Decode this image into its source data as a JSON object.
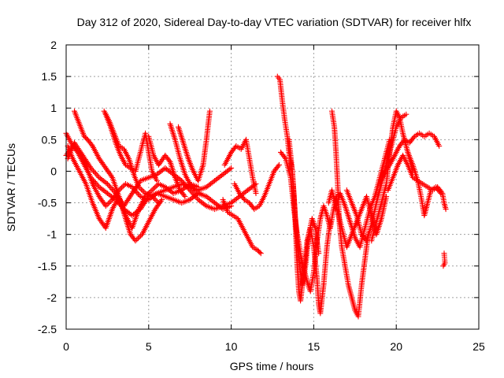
{
  "chart_data": {
    "type": "scatter",
    "title": "Day 312 of 2020, Sidereal Day-to-day VTEC variation (SDTVAR) for receiver hlfx",
    "xlabel": "GPS time / hours",
    "ylabel": "SDTVAR / TECUs",
    "xlim": [
      0,
      25
    ],
    "ylim": [
      -2.5,
      2
    ],
    "xticks": [
      0,
      5,
      10,
      15,
      20,
      25
    ],
    "yticks": [
      -2.5,
      -2,
      -1.5,
      -1,
      -0.5,
      0,
      0.5,
      1,
      1.5,
      2
    ],
    "xtick_labels": [
      "0",
      "5",
      "10",
      "15",
      "20",
      "25"
    ],
    "ytick_labels": [
      "-2.5",
      "-2",
      "-1.5",
      "-1",
      "-0.5",
      "0",
      "0.5",
      "1",
      "1.5",
      "2"
    ],
    "grid": true,
    "marker": "+",
    "color": "#ff0000",
    "tracks": [
      [
        [
          0.0,
          0.6
        ],
        [
          0.3,
          0.45
        ],
        [
          0.7,
          0.3
        ],
        [
          1.1,
          0.1
        ],
        [
          1.5,
          -0.1
        ],
        [
          2.0,
          -0.25
        ],
        [
          2.5,
          -0.35
        ],
        [
          3.0,
          -0.45
        ],
        [
          3.5,
          -0.6
        ],
        [
          4.0,
          -0.7
        ],
        [
          4.5,
          -0.6
        ],
        [
          5.0,
          -0.4
        ],
        [
          5.5,
          -0.35
        ],
        [
          6.0,
          -0.3
        ],
        [
          6.5,
          -0.25
        ],
        [
          7.0,
          -0.2
        ],
        [
          7.5,
          -0.25
        ],
        [
          8.0,
          -0.3
        ],
        [
          8.5,
          -0.25
        ],
        [
          9.0,
          -0.15
        ],
        [
          9.5,
          -0.05
        ],
        [
          10.0,
          0.05
        ]
      ],
      [
        [
          0.0,
          0.25
        ],
        [
          0.4,
          0.4
        ],
        [
          0.8,
          0.3
        ],
        [
          1.2,
          0.1
        ],
        [
          1.6,
          -0.2
        ],
        [
          2.0,
          -0.4
        ],
        [
          2.4,
          -0.55
        ],
        [
          2.8,
          -0.45
        ],
        [
          3.2,
          -0.3
        ],
        [
          3.6,
          -0.2
        ],
        [
          4.0,
          -0.25
        ],
        [
          4.5,
          -0.4
        ],
        [
          5.0,
          -0.45
        ],
        [
          5.5,
          -0.35
        ],
        [
          6.0,
          -0.4
        ],
        [
          6.5,
          -0.45
        ],
        [
          7.0,
          -0.5
        ],
        [
          7.5,
          -0.45
        ],
        [
          8.0,
          -0.35
        ],
        [
          8.5,
          -0.4
        ],
        [
          9.0,
          -0.5
        ],
        [
          9.5,
          -0.6
        ],
        [
          10.0,
          -0.55
        ]
      ],
      [
        [
          0.1,
          0.4
        ],
        [
          0.4,
          0.2
        ],
        [
          0.8,
          0.0
        ],
        [
          1.2,
          -0.2
        ],
        [
          1.6,
          -0.5
        ],
        [
          2.0,
          -0.75
        ],
        [
          2.4,
          -0.9
        ],
        [
          2.8,
          -0.6
        ],
        [
          3.2,
          -0.4
        ],
        [
          3.6,
          -0.7
        ],
        [
          4.0,
          -0.9
        ],
        [
          4.4,
          -0.6
        ],
        [
          4.8,
          -0.4
        ],
        [
          5.2,
          -0.3
        ],
        [
          5.6,
          -0.2
        ],
        [
          6.0,
          -0.25
        ],
        [
          6.5,
          -0.35
        ],
        [
          7.0,
          -0.3
        ],
        [
          7.5,
          -0.2
        ],
        [
          8.0,
          -0.25
        ]
      ],
      [
        [
          0.1,
          0.2
        ],
        [
          0.5,
          0.45
        ],
        [
          1.0,
          0.25
        ],
        [
          1.5,
          0.05
        ],
        [
          2.0,
          -0.1
        ],
        [
          2.5,
          -0.2
        ],
        [
          3.0,
          -0.35
        ],
        [
          3.5,
          -0.55
        ],
        [
          4.0,
          -0.35
        ],
        [
          4.5,
          -0.15
        ],
        [
          5.0,
          -0.1
        ],
        [
          5.5,
          -0.05
        ],
        [
          6.0,
          0.05
        ],
        [
          6.5,
          -0.05
        ],
        [
          7.0,
          -0.15
        ],
        [
          7.5,
          -0.3
        ],
        [
          8.0,
          -0.45
        ],
        [
          8.5,
          -0.55
        ],
        [
          9.0,
          -0.6
        ],
        [
          9.5,
          -0.55
        ],
        [
          10.0,
          -0.5
        ],
        [
          10.5,
          -0.4
        ],
        [
          11.0,
          -0.3
        ],
        [
          11.5,
          -0.2
        ]
      ],
      [
        [
          0.5,
          0.95
        ],
        [
          0.8,
          0.75
        ],
        [
          1.1,
          0.55
        ],
        [
          1.3,
          0.5
        ],
        [
          1.6,
          0.4
        ],
        [
          2.0,
          0.2
        ],
        [
          2.4,
          0.05
        ],
        [
          2.8,
          -0.1
        ],
        [
          3.2,
          -0.4
        ],
        [
          3.6,
          -0.75
        ],
        [
          3.9,
          -1.0
        ],
        [
          4.2,
          -1.1
        ],
        [
          4.6,
          -1.0
        ],
        [
          5.0,
          -0.8
        ],
        [
          5.4,
          -0.6
        ],
        [
          5.8,
          -0.45
        ]
      ],
      [
        [
          2.3,
          0.95
        ],
        [
          2.6,
          0.8
        ],
        [
          2.9,
          0.6
        ],
        [
          3.2,
          0.4
        ],
        [
          3.5,
          0.35
        ],
        [
          3.8,
          0.2
        ],
        [
          4.1,
          -0.05
        ],
        [
          4.4,
          -0.25
        ],
        [
          4.8,
          -0.35
        ],
        [
          5.2,
          -0.4
        ],
        [
          5.6,
          -0.5
        ]
      ],
      [
        [
          2.4,
          0.9
        ],
        [
          2.7,
          0.7
        ],
        [
          3.0,
          0.45
        ],
        [
          3.3,
          0.25
        ],
        [
          3.6,
          0.1
        ],
        [
          3.9,
          0.05
        ],
        [
          4.2,
          0.0
        ],
        [
          4.5,
          0.3
        ],
        [
          4.8,
          0.6
        ],
        [
          5.0,
          0.3
        ],
        [
          5.2,
          0.0
        ],
        [
          5.5,
          -0.15
        ]
      ],
      [
        [
          5.0,
          0.55
        ],
        [
          5.3,
          0.25
        ],
        [
          5.6,
          0.1
        ],
        [
          6.0,
          0.25
        ],
        [
          6.3,
          0.15
        ],
        [
          6.6,
          -0.1
        ],
        [
          6.9,
          -0.3
        ],
        [
          7.2,
          -0.4
        ]
      ],
      [
        [
          6.3,
          0.75
        ],
        [
          6.6,
          0.5
        ],
        [
          6.9,
          0.2
        ],
        [
          7.2,
          -0.05
        ],
        [
          7.5,
          -0.2
        ],
        [
          7.8,
          -0.3
        ],
        [
          8.1,
          -0.35
        ]
      ],
      [
        [
          6.8,
          0.7
        ],
        [
          7.1,
          0.45
        ],
        [
          7.4,
          0.2
        ],
        [
          7.7,
          0.0
        ],
        [
          8.0,
          -0.15
        ],
        [
          8.3,
          0.1
        ],
        [
          8.5,
          0.5
        ],
        [
          8.7,
          0.95
        ]
      ],
      [
        [
          9.6,
          0.1
        ],
        [
          10.0,
          0.3
        ],
        [
          10.3,
          0.4
        ],
        [
          10.6,
          0.35
        ],
        [
          10.9,
          0.5
        ],
        [
          11.1,
          0.2
        ],
        [
          11.3,
          -0.1
        ],
        [
          11.5,
          -0.35
        ]
      ],
      [
        [
          9.5,
          -0.45
        ],
        [
          9.8,
          -0.65
        ],
        [
          10.1,
          -0.7
        ],
        [
          10.4,
          -0.75
        ],
        [
          10.7,
          -0.9
        ],
        [
          11.0,
          -1.05
        ],
        [
          11.3,
          -1.2
        ],
        [
          11.6,
          -1.25
        ],
        [
          11.8,
          -1.3
        ]
      ],
      [
        [
          10.2,
          -0.2
        ],
        [
          10.5,
          -0.35
        ],
        [
          10.8,
          -0.45
        ],
        [
          11.1,
          -0.5
        ],
        [
          11.4,
          -0.6
        ],
        [
          11.7,
          -0.55
        ],
        [
          12.0,
          -0.4
        ],
        [
          12.3,
          -0.2
        ],
        [
          12.6,
          0.0
        ],
        [
          12.9,
          0.1
        ]
      ],
      [
        [
          12.8,
          1.5
        ],
        [
          12.95,
          1.45
        ],
        [
          13.1,
          1.1
        ],
        [
          13.25,
          0.8
        ],
        [
          13.4,
          0.55
        ],
        [
          13.5,
          0.3
        ],
        [
          13.6,
          0.15
        ],
        [
          13.7,
          0.0
        ],
        [
          13.8,
          -0.4
        ],
        [
          13.9,
          -0.9
        ],
        [
          14.0,
          -1.5
        ],
        [
          14.1,
          -1.9
        ],
        [
          14.2,
          -2.05
        ],
        [
          14.4,
          -1.6
        ],
        [
          14.6,
          -1.1
        ],
        [
          14.8,
          -0.9
        ],
        [
          15.0,
          -1.2
        ],
        [
          15.2,
          -1.7
        ],
        [
          15.3,
          -2.1
        ],
        [
          15.4,
          -2.25
        ],
        [
          15.6,
          -1.8
        ],
        [
          15.8,
          -1.2
        ],
        [
          16.0,
          -0.8
        ]
      ],
      [
        [
          13.0,
          0.3
        ],
        [
          13.3,
          0.2
        ],
        [
          13.6,
          -0.1
        ],
        [
          13.8,
          -0.6
        ],
        [
          14.0,
          -1.0
        ],
        [
          14.2,
          -1.3
        ],
        [
          14.4,
          -1.55
        ],
        [
          14.6,
          -1.75
        ],
        [
          14.8,
          -1.9
        ],
        [
          15.0,
          -1.6
        ],
        [
          15.2,
          -1.1
        ],
        [
          15.4,
          -0.75
        ],
        [
          15.6,
          -0.55
        ],
        [
          15.8,
          -0.7
        ],
        [
          16.0,
          -0.9
        ],
        [
          16.2,
          -0.6
        ],
        [
          16.4,
          -0.4
        ]
      ],
      [
        [
          13.5,
          0.5
        ],
        [
          13.7,
          0.0
        ],
        [
          13.9,
          -0.8
        ],
        [
          14.1,
          -1.4
        ],
        [
          14.3,
          -1.8
        ],
        [
          14.5,
          -1.5
        ],
        [
          14.7,
          -1.0
        ],
        [
          14.9,
          -0.75
        ],
        [
          15.1,
          -0.9
        ],
        [
          15.3,
          -1.3
        ]
      ],
      [
        [
          16.1,
          0.95
        ],
        [
          16.25,
          0.7
        ],
        [
          16.35,
          0.3
        ],
        [
          16.45,
          -0.2
        ],
        [
          16.55,
          -0.8
        ],
        [
          16.7,
          -1.2
        ],
        [
          16.9,
          -1.5
        ],
        [
          17.1,
          -1.8
        ],
        [
          17.3,
          -2.0
        ],
        [
          17.5,
          -2.2
        ],
        [
          17.7,
          -2.3
        ],
        [
          17.9,
          -1.8
        ],
        [
          18.1,
          -1.4
        ],
        [
          18.3,
          -1.0
        ]
      ],
      [
        [
          15.9,
          -0.5
        ],
        [
          16.1,
          -0.3
        ],
        [
          16.4,
          -0.6
        ],
        [
          16.7,
          -0.9
        ],
        [
          17.0,
          -1.2
        ],
        [
          17.3,
          -1.0
        ],
        [
          17.6,
          -0.8
        ],
        [
          17.9,
          -0.6
        ],
        [
          18.2,
          -0.4
        ],
        [
          18.5,
          -0.7
        ],
        [
          18.8,
          -1.0
        ],
        [
          19.1,
          -0.75
        ],
        [
          19.4,
          -0.4
        ]
      ],
      [
        [
          16.3,
          -0.6
        ],
        [
          16.6,
          -0.35
        ],
        [
          16.9,
          -0.55
        ],
        [
          17.2,
          -0.8
        ],
        [
          17.5,
          -1.05
        ],
        [
          17.8,
          -1.2
        ],
        [
          18.1,
          -0.9
        ],
        [
          18.4,
          -0.6
        ],
        [
          18.7,
          -0.4
        ],
        [
          19.0,
          -0.1
        ],
        [
          19.3,
          0.2
        ],
        [
          19.6,
          0.5
        ]
      ],
      [
        [
          17.0,
          -0.3
        ],
        [
          17.3,
          -0.5
        ],
        [
          17.6,
          -0.7
        ],
        [
          17.9,
          -1.0
        ],
        [
          18.2,
          -1.1
        ],
        [
          18.5,
          -0.85
        ],
        [
          18.8,
          -0.5
        ],
        [
          19.1,
          -0.2
        ],
        [
          19.4,
          0.1
        ],
        [
          19.7,
          0.4
        ],
        [
          20.0,
          0.7
        ],
        [
          20.3,
          0.85
        ],
        [
          20.6,
          0.9
        ]
      ],
      [
        [
          18.5,
          -1.1
        ],
        [
          18.8,
          -0.8
        ],
        [
          19.1,
          -0.5
        ],
        [
          19.4,
          -0.2
        ],
        [
          19.6,
          0.3
        ],
        [
          19.8,
          0.7
        ],
        [
          20.0,
          0.95
        ],
        [
          20.2,
          0.85
        ],
        [
          20.4,
          0.6
        ],
        [
          20.6,
          0.4
        ],
        [
          20.8,
          0.2
        ],
        [
          21.0,
          0.0
        ]
      ],
      [
        [
          19.0,
          -0.2
        ],
        [
          19.3,
          0.0
        ],
        [
          19.6,
          0.1
        ],
        [
          19.9,
          0.25
        ],
        [
          20.2,
          0.4
        ],
        [
          20.5,
          0.5
        ],
        [
          20.8,
          0.45
        ],
        [
          21.1,
          0.55
        ],
        [
          21.4,
          0.6
        ],
        [
          21.7,
          0.55
        ],
        [
          22.0,
          0.6
        ],
        [
          22.3,
          0.55
        ],
        [
          22.6,
          0.4
        ]
      ],
      [
        [
          19.5,
          -0.3
        ],
        [
          19.8,
          -0.1
        ],
        [
          20.1,
          0.1
        ],
        [
          20.4,
          0.25
        ],
        [
          20.7,
          0.1
        ],
        [
          21.0,
          -0.1
        ],
        [
          21.3,
          -0.15
        ],
        [
          21.6,
          -0.2
        ],
        [
          21.9,
          -0.25
        ],
        [
          22.2,
          -0.3
        ],
        [
          22.5,
          -0.25
        ],
        [
          22.8,
          -0.35
        ],
        [
          22.9,
          -0.5
        ],
        [
          23.0,
          -0.6
        ]
      ],
      [
        [
          20.7,
          0.3
        ],
        [
          21.0,
          0.1
        ],
        [
          21.3,
          -0.15
        ],
        [
          21.5,
          -0.4
        ],
        [
          21.7,
          -0.7
        ],
        [
          21.9,
          -0.5
        ],
        [
          22.1,
          -0.3
        ],
        [
          22.4,
          -0.25
        ],
        [
          22.7,
          -0.35
        ]
      ],
      [
        [
          22.9,
          -1.3
        ],
        [
          22.95,
          -1.45
        ],
        [
          22.85,
          -1.5
        ]
      ]
    ]
  }
}
